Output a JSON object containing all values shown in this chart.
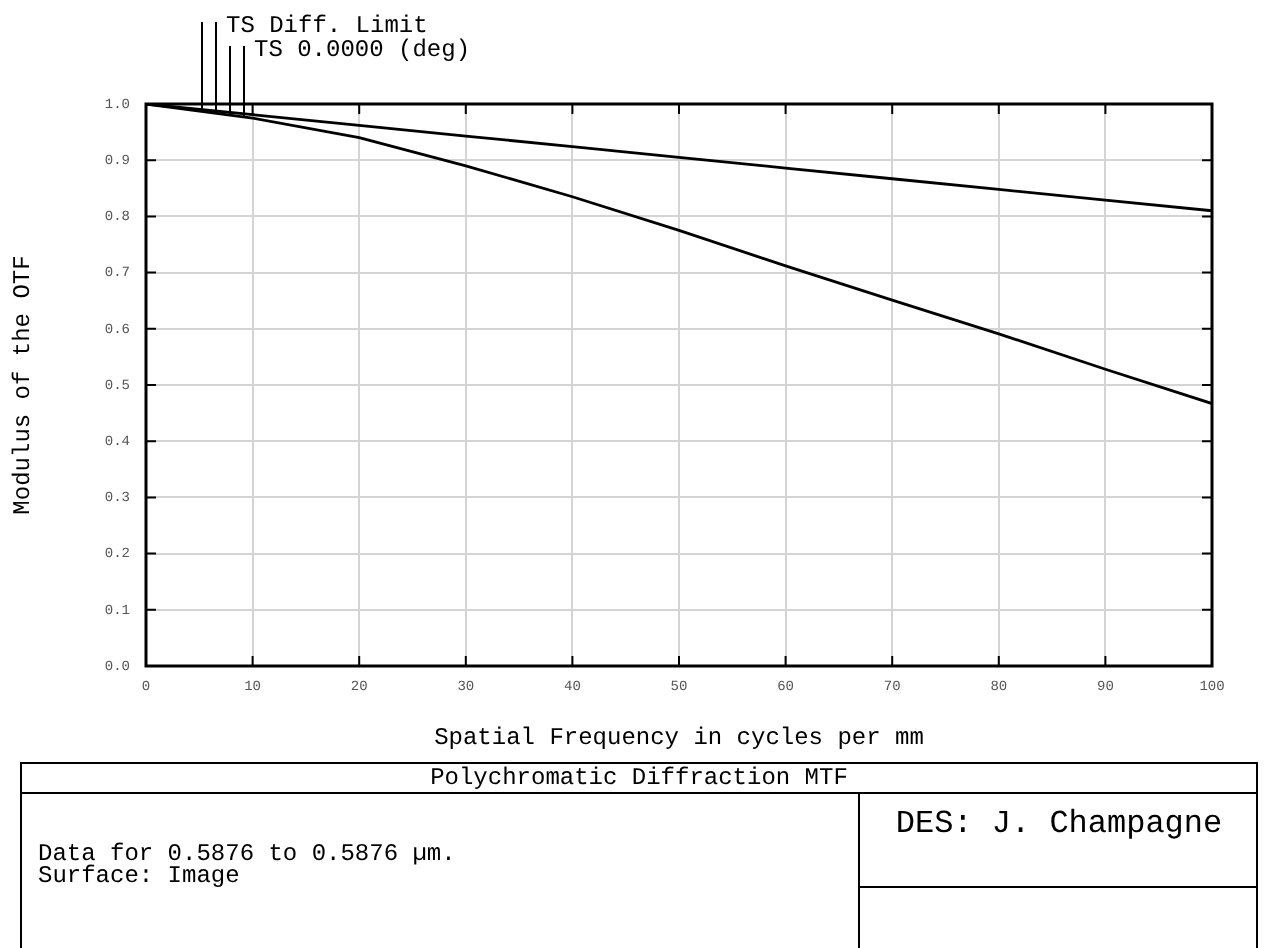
{
  "chart_data": {
    "type": "line",
    "title": "Polychromatic Diffraction MTF",
    "xlabel": "Spatial Frequency in cycles per mm",
    "ylabel": "Modulus of the OTF",
    "x": [
      0,
      10,
      20,
      30,
      40,
      50,
      60,
      70,
      80,
      90,
      100
    ],
    "series": [
      {
        "name": "TS Diff. Limit",
        "color": "#000000",
        "values": [
          1.0,
          0.981,
          0.962,
          0.943,
          0.924,
          0.905,
          0.886,
          0.867,
          0.848,
          0.829,
          0.81
        ]
      },
      {
        "name": "TS 0.0000 (deg)",
        "color": "#000000",
        "values": [
          1.0,
          0.975,
          0.94,
          0.89,
          0.835,
          0.775,
          0.712,
          0.651,
          0.591,
          0.528,
          0.467
        ]
      }
    ],
    "xlim": [
      0,
      100
    ],
    "xticks": [
      0,
      10,
      20,
      30,
      40,
      50,
      60,
      70,
      80,
      90,
      100
    ],
    "ylim": [
      0,
      1
    ],
    "yticks": [
      {
        "value": 0,
        "label": "0.0"
      },
      {
        "value": 0.1,
        "label": "0.1"
      },
      {
        "value": 0.2,
        "label": "0.2"
      },
      {
        "value": 0.3,
        "label": "0.3"
      },
      {
        "value": 0.4,
        "label": "0.4"
      },
      {
        "value": 0.5,
        "label": "0.5"
      },
      {
        "value": 0.6,
        "label": "0.6"
      },
      {
        "value": 0.7,
        "label": "0.7"
      },
      {
        "value": 0.8,
        "label": "0.8"
      },
      {
        "value": 0.9,
        "label": "0.9"
      },
      {
        "value": 1,
        "label": "1.0"
      }
    ],
    "grid": true,
    "legend": "top left",
    "marker": "none",
    "line_style": "solid",
    "annotations": [
      "Data for 0.5876 to 0.5876 µm.\nSurface: Image",
      "DES: J. Champagne"
    ]
  }
}
